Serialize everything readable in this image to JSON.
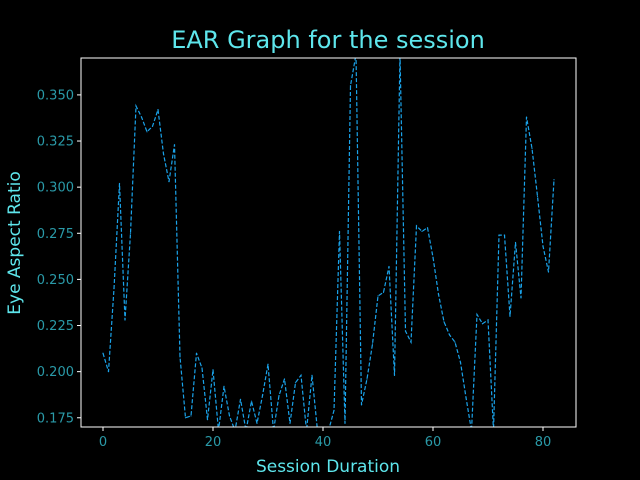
{
  "colors": {
    "background": "#000000",
    "text": "#5ee6ec",
    "ticks": "#2a9aa8",
    "frame": "#ffffff",
    "line": "#1aa3ea"
  },
  "chart_data": {
    "type": "line",
    "title": "EAR Graph for the session",
    "xlabel": "Session Duration",
    "ylabel": "Eye Aspect Ratio",
    "xlim": [
      -4,
      86
    ],
    "ylim": [
      0.17,
      0.37
    ],
    "xticks": [
      0,
      20,
      40,
      60,
      80
    ],
    "yticks": [
      0.175,
      0.2,
      0.225,
      0.25,
      0.275,
      0.3,
      0.325,
      0.35
    ],
    "ytick_labels": [
      "0.175",
      "0.200",
      "0.225",
      "0.250",
      "0.275",
      "0.300",
      "0.325",
      "0.350"
    ],
    "line_style": "dashed",
    "series": [
      {
        "name": "EAR",
        "x": [
          0,
          1,
          2,
          3,
          4,
          5,
          6,
          7,
          8,
          9,
          10,
          11,
          12,
          13,
          14,
          15,
          16,
          17,
          18,
          19,
          20,
          21,
          22,
          23,
          24,
          25,
          26,
          27,
          28,
          29,
          30,
          31,
          32,
          33,
          34,
          35,
          36,
          37,
          38,
          39,
          40,
          41,
          42,
          43,
          44,
          45,
          46,
          47,
          48,
          49,
          50,
          51,
          52,
          53,
          54,
          55,
          56,
          57,
          58,
          59,
          60,
          61,
          62,
          63,
          64,
          65,
          66,
          67,
          68,
          69,
          70,
          71,
          72,
          73,
          74,
          75,
          76,
          77,
          78,
          79,
          80,
          81,
          82
        ],
        "values": [
          0.21,
          0.2,
          0.245,
          0.302,
          0.228,
          0.275,
          0.344,
          0.338,
          0.33,
          0.333,
          0.342,
          0.318,
          0.303,
          0.323,
          0.208,
          0.175,
          0.176,
          0.21,
          0.202,
          0.174,
          0.201,
          0.168,
          0.192,
          0.176,
          0.168,
          0.185,
          0.168,
          0.184,
          0.172,
          0.187,
          0.204,
          0.168,
          0.187,
          0.196,
          0.172,
          0.194,
          0.198,
          0.168,
          0.198,
          0.168,
          0.168,
          0.168,
          0.179,
          0.276,
          0.172,
          0.355,
          0.372,
          0.182,
          0.196,
          0.215,
          0.241,
          0.243,
          0.257,
          0.198,
          0.372,
          0.222,
          0.216,
          0.279,
          0.276,
          0.278,
          0.262,
          0.242,
          0.227,
          0.22,
          0.216,
          0.205,
          0.186,
          0.168,
          0.231,
          0.226,
          0.228,
          0.168,
          0.274,
          0.274,
          0.23,
          0.27,
          0.24,
          0.338,
          0.321,
          0.295,
          0.268,
          0.254,
          0.304
        ]
      }
    ]
  }
}
